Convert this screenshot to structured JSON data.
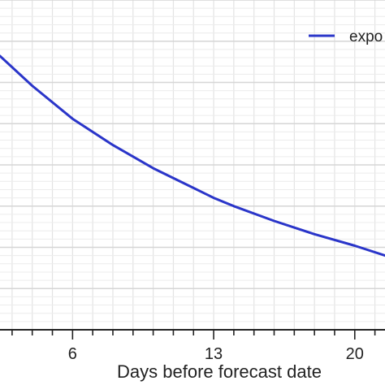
{
  "chart_data": {
    "type": "line",
    "title": "",
    "xlabel": "Days before forecast date",
    "ylabel": "",
    "xlim": [
      2.4,
      21.5
    ],
    "ylim": [
      0,
      1
    ],
    "x_ticks": [
      6,
      13,
      20
    ],
    "x_tick_labels": [
      "6",
      "13",
      "20"
    ],
    "grid": true,
    "legend": {
      "placement": "top-right",
      "entries": [
        "expo"
      ]
    },
    "series": [
      {
        "name": "expo",
        "color": "#2a35c9",
        "x": [
          2.4,
          4,
          6,
          8,
          10,
          12,
          13,
          14,
          16,
          18,
          20,
          21.5
        ],
        "y": [
          0.83,
          0.74,
          0.64,
          0.56,
          0.49,
          0.43,
          0.4,
          0.375,
          0.33,
          0.29,
          0.255,
          0.225
        ]
      }
    ]
  }
}
